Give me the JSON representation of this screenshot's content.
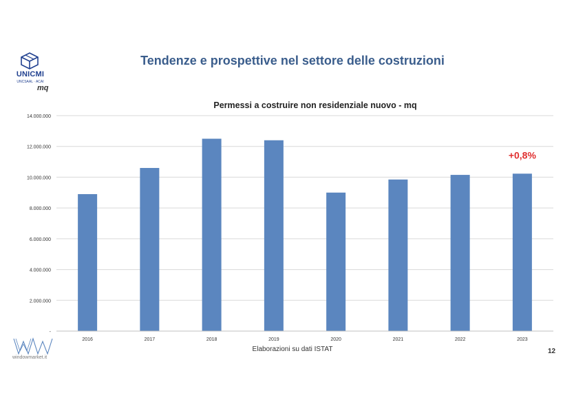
{
  "slide": {
    "title": "Tendenze e prospettive nel settore delle costruzioni",
    "unit": "mq",
    "source": "Elaborazioni su dati ISTAT",
    "page_number": "12"
  },
  "logos": {
    "top_name": "UNICMI",
    "top_sub": "UNCSAAL · ACAI",
    "bottom_caption": "windowmarket.it"
  },
  "colors": {
    "bar": "#5b86bf",
    "title": "#3a5d8c",
    "annotation": "#e03030",
    "grid": "#d9d9d9"
  },
  "chart_data": {
    "type": "bar",
    "title": "Permessi a costruire  non residenziale nuovo - mq",
    "xlabel": "",
    "ylabel": "",
    "categories": [
      "2016",
      "2017",
      "2018",
      "2019",
      "2020",
      "2021",
      "2022",
      "2023"
    ],
    "values": [
      8900000,
      10600000,
      12500000,
      12400000,
      9000000,
      9850000,
      10150000,
      10230000
    ],
    "ylim": [
      0,
      14000000
    ],
    "yticks": [
      0,
      2000000,
      4000000,
      6000000,
      8000000,
      10000000,
      12000000,
      14000000
    ],
    "ytick_labels": [
      "-",
      "2.000.000",
      "4.000.000",
      "6.000.000",
      "8.000.000",
      "10.000.000",
      "12.000.000",
      "14.000.000"
    ],
    "grid": true,
    "annotations": [
      {
        "category": "2023",
        "text": "+0,8%"
      }
    ]
  }
}
